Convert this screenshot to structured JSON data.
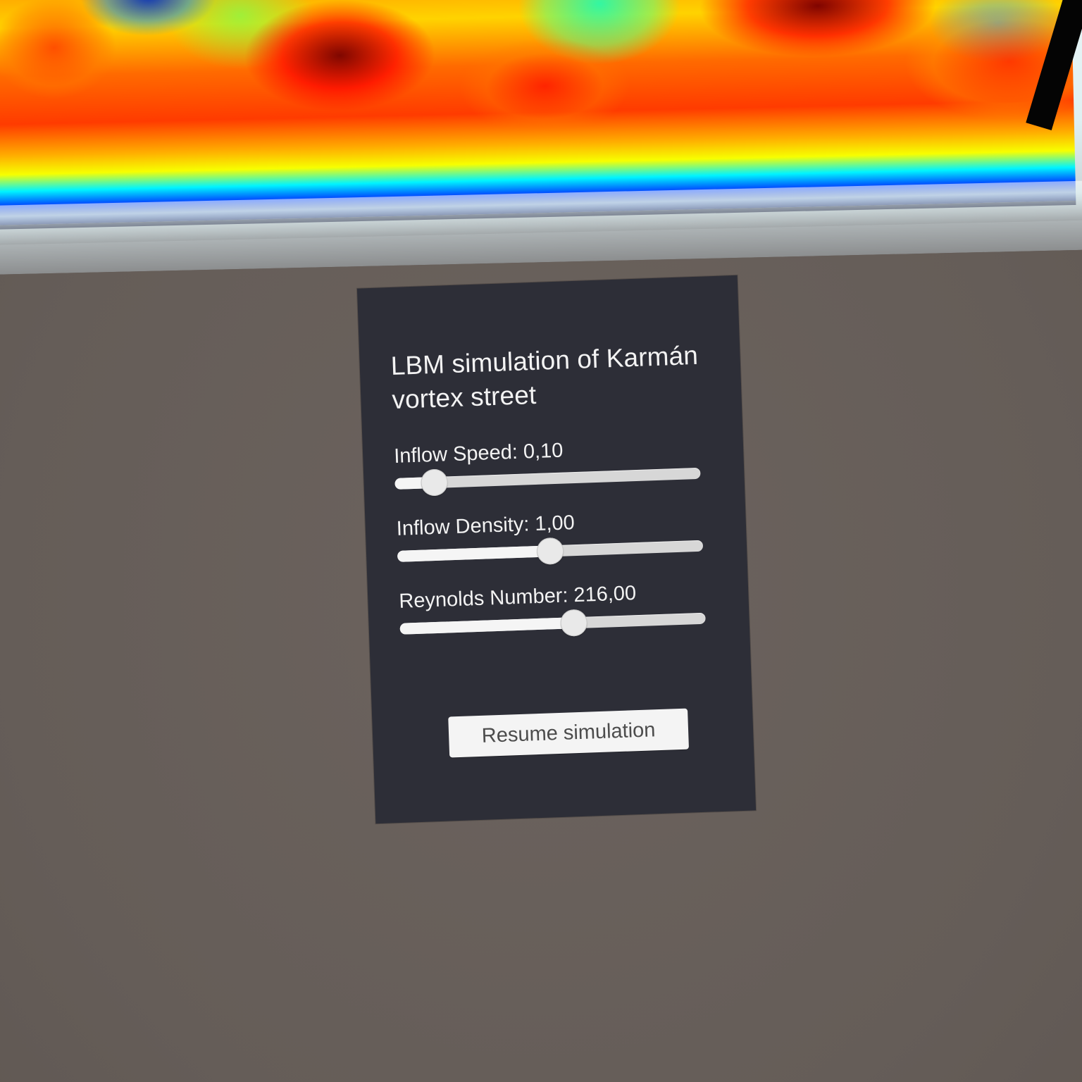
{
  "simulation_view": {
    "visualization": "heatmap"
  },
  "panel": {
    "title": "LBM simulation of Karmán vortex street",
    "controls": [
      {
        "label": "Inflow Speed:",
        "value": "0,10",
        "position": 0.13
      },
      {
        "label": "Inflow Density:",
        "value": "1,00",
        "position": 0.5
      },
      {
        "label": "Reynolds Number:",
        "value": "216,00",
        "position": 0.57
      }
    ],
    "resume_button_label": "Resume simulation"
  },
  "colors": {
    "panel_background": "#2d2e37",
    "background": "#6b625d",
    "slider_track": "#d7d7d7",
    "slider_fill": "#f5f5f5",
    "button_background": "#f4f4f4"
  }
}
